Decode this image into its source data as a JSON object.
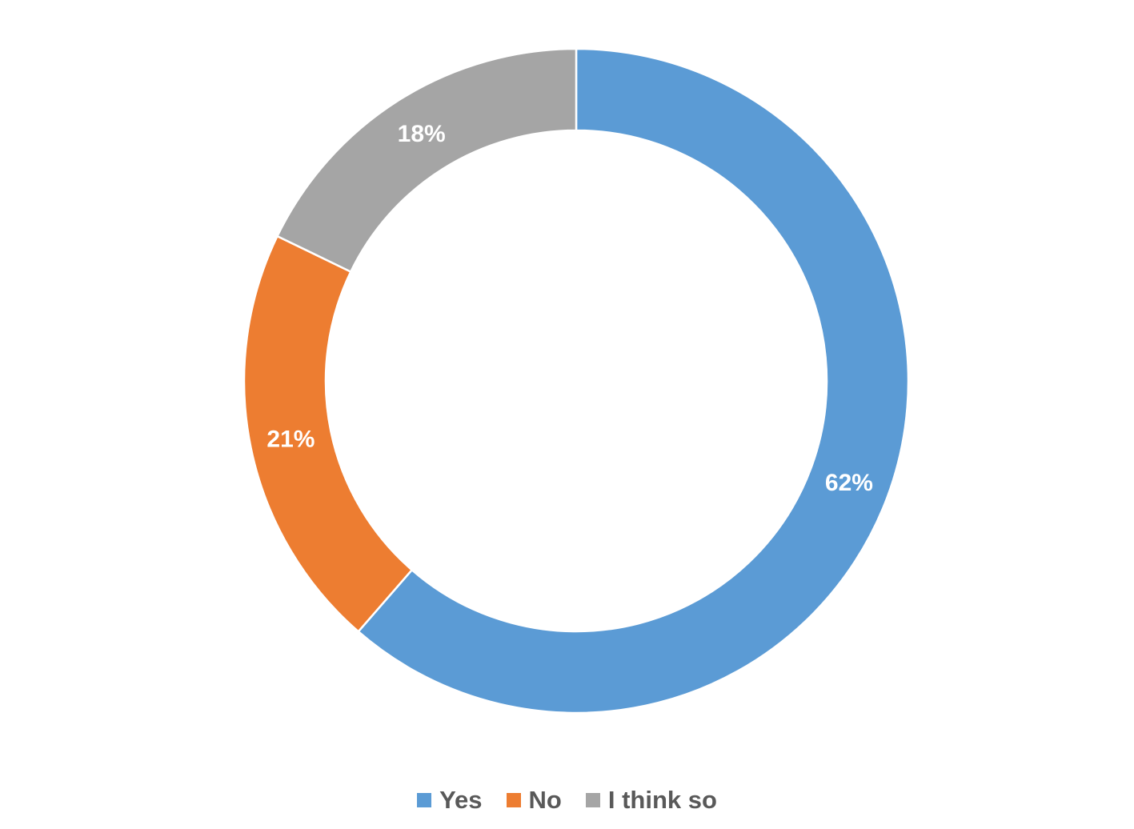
{
  "chart_data": {
    "type": "pie",
    "donut": true,
    "categories": [
      "Yes",
      "No",
      "I think so"
    ],
    "values": [
      62,
      21,
      18
    ],
    "data_labels": [
      "62%",
      "21%",
      "18%"
    ],
    "colors": [
      "#5B9BD5",
      "#ED7D31",
      "#A5A5A5"
    ],
    "title": "",
    "legend_position": "bottom"
  }
}
